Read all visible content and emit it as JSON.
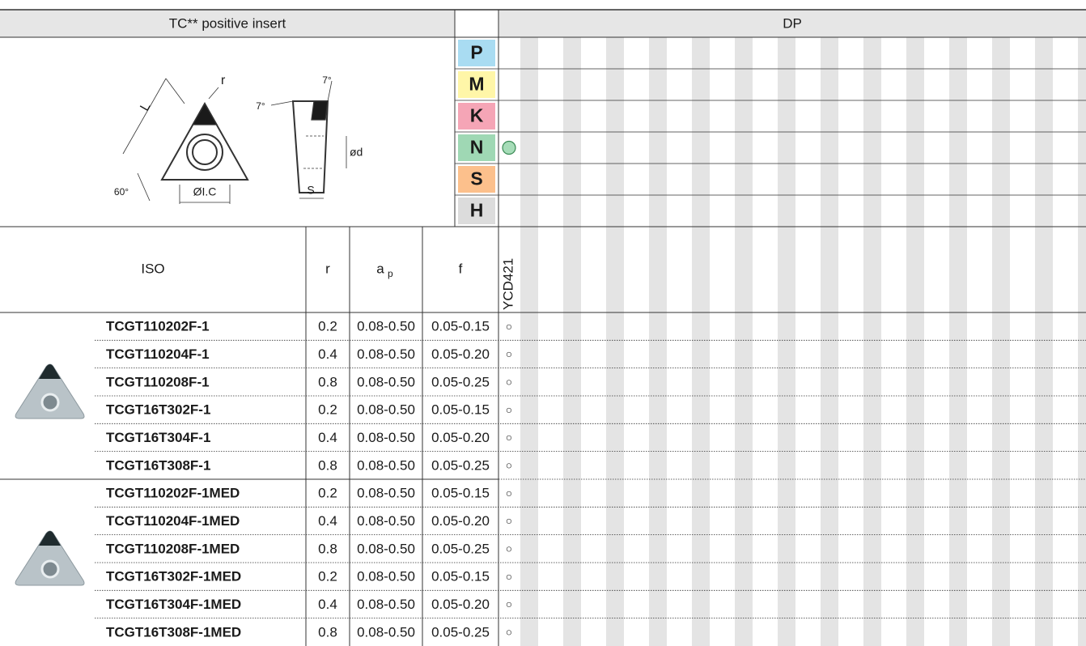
{
  "header": {
    "title": "TC** positive insert",
    "grade_group": "DP"
  },
  "diagram": {
    "labels": {
      "r": "r",
      "L": "L",
      "top_angle": "7°",
      "side_angle": "7°",
      "hole": "ød",
      "corner_angle": "60°",
      "ic": "ØI.C",
      "thickness": "S"
    }
  },
  "materials": [
    "P",
    "M",
    "K",
    "N",
    "S",
    "H"
  ],
  "table": {
    "columns": {
      "iso": "ISO",
      "r": "r",
      "ap": "a",
      "ap_sub": "p",
      "f": "f",
      "grade": "YCD421"
    },
    "groups": [
      {
        "rows": [
          [
            "TCGT110202F-1",
            "0.2",
            "0.08-0.50",
            "0.05-0.15",
            "○"
          ],
          [
            "TCGT110204F-1",
            "0.4",
            "0.08-0.50",
            "0.05-0.20",
            "○"
          ],
          [
            "TCGT110208F-1",
            "0.8",
            "0.08-0.50",
            "0.05-0.25",
            "○"
          ],
          [
            "TCGT16T302F-1",
            "0.2",
            "0.08-0.50",
            "0.05-0.15",
            "○"
          ],
          [
            "TCGT16T304F-1",
            "0.4",
            "0.08-0.50",
            "0.05-0.20",
            "○"
          ],
          [
            "TCGT16T308F-1",
            "0.8",
            "0.08-0.50",
            "0.05-0.25",
            "○"
          ]
        ]
      },
      {
        "rows": [
          [
            "TCGT110202F-1MED",
            "0.2",
            "0.08-0.50",
            "0.05-0.15",
            "○"
          ],
          [
            "TCGT110204F-1MED",
            "0.4",
            "0.08-0.50",
            "0.05-0.20",
            "○"
          ],
          [
            "TCGT110208F-1MED",
            "0.8",
            "0.08-0.50",
            "0.05-0.25",
            "○"
          ],
          [
            "TCGT16T302F-1MED",
            "0.2",
            "0.08-0.50",
            "0.05-0.15",
            "○"
          ],
          [
            "TCGT16T304F-1MED",
            "0.4",
            "0.08-0.50",
            "0.05-0.20",
            "○"
          ],
          [
            "TCGT16T308F-1MED",
            "0.8",
            "0.08-0.50",
            "0.05-0.25",
            "○"
          ]
        ]
      }
    ]
  }
}
